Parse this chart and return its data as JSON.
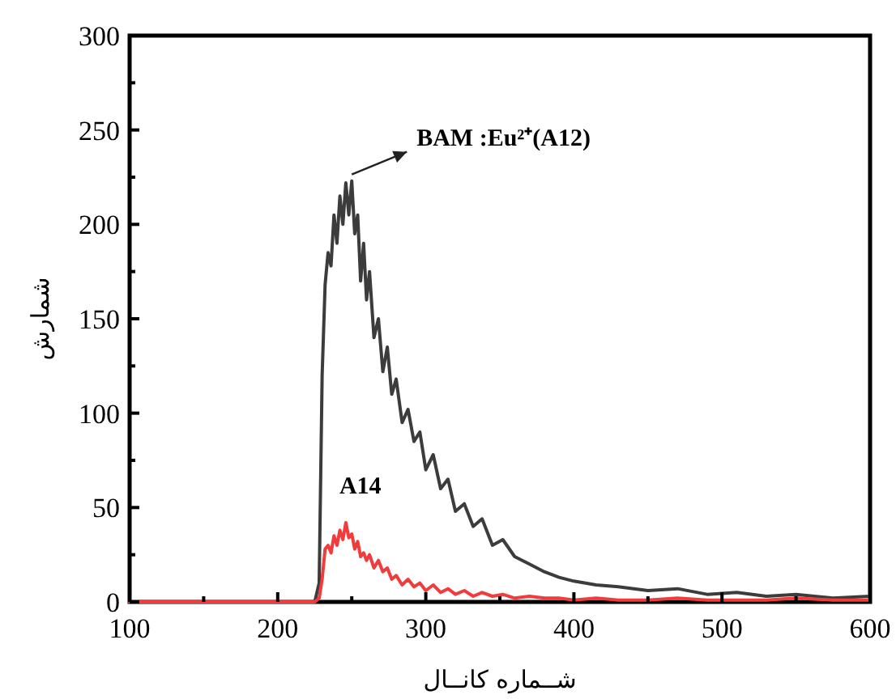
{
  "chart_data": {
    "type": "line",
    "xlabel": "شــماره کانــال",
    "ylabel": "شمارش",
    "x": [
      100,
      150,
      200,
      225,
      228,
      230,
      232,
      234,
      236,
      238,
      240,
      242,
      244,
      246,
      248,
      250,
      252,
      254,
      256,
      258,
      260,
      262,
      265,
      268,
      271,
      274,
      277,
      280,
      284,
      288,
      292,
      296,
      300,
      305,
      310,
      315,
      320,
      326,
      332,
      338,
      345,
      352,
      360,
      370,
      380,
      390,
      400,
      415,
      430,
      450,
      470,
      490,
      510,
      530,
      550,
      575,
      600
    ],
    "series": [
      {
        "name": "BAM :Eu²⁺(A12)",
        "color": "#3c3c3c",
        "values": [
          0,
          0,
          0,
          0,
          10,
          120,
          168,
          185,
          178,
          205,
          190,
          215,
          200,
          222,
          205,
          223,
          195,
          205,
          170,
          190,
          160,
          175,
          140,
          150,
          122,
          135,
          110,
          118,
          95,
          102,
          85,
          90,
          70,
          78,
          60,
          65,
          48,
          52,
          40,
          44,
          30,
          33,
          24,
          20,
          16,
          13,
          11,
          9,
          8,
          6,
          7,
          4,
          5,
          3,
          4,
          2,
          3
        ]
      },
      {
        "name": "A14",
        "color": "#f03c3c",
        "values": [
          0,
          0,
          0,
          0,
          2,
          12,
          28,
          30,
          26,
          35,
          30,
          38,
          33,
          42,
          34,
          36,
          28,
          32,
          24,
          26,
          22,
          25,
          18,
          22,
          16,
          18,
          12,
          14,
          9,
          12,
          8,
          10,
          6,
          9,
          5,
          7,
          4,
          6,
          3,
          5,
          3,
          4,
          2,
          3,
          2,
          2,
          1,
          2,
          1,
          1,
          2,
          1,
          1,
          1,
          2,
          1,
          1
        ]
      }
    ],
    "xlim": [
      100,
      600
    ],
    "xticks": [
      100,
      200,
      300,
      400,
      500,
      600
    ],
    "ylim": [
      0,
      300
    ],
    "yticks": [
      0,
      50,
      100,
      150,
      200,
      250,
      300
    ],
    "grid": false,
    "marker": "none",
    "line_style": "solid"
  }
}
